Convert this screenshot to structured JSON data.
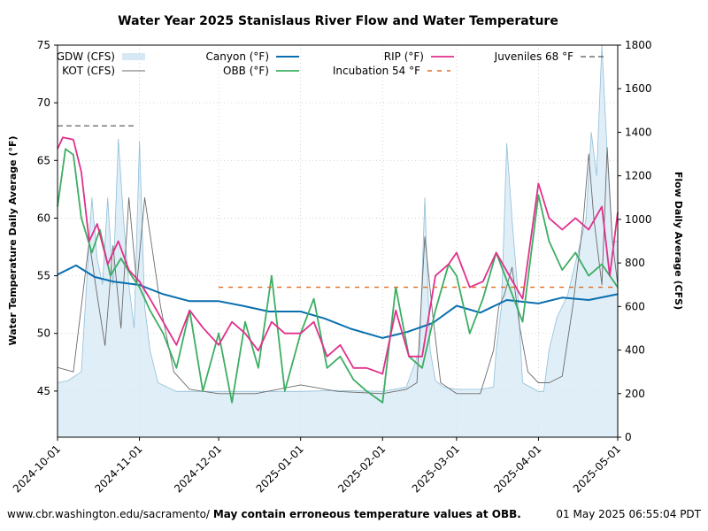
{
  "chart_data": {
    "type": "line",
    "title": "Water Year 2025 Stanislaus River Flow and Water Temperature",
    "ylabel": "Water Temperature Daily Average (°F)",
    "y2label": "Flow Daily Average (CFS)",
    "ylim": [
      41,
      75
    ],
    "y2lim": [
      0,
      1800
    ],
    "xlim": [
      "2024-10-01",
      "2025-05-01"
    ],
    "x_ticks": [
      "2024-10-01",
      "2024-11-01",
      "2024-12-01",
      "2025-01-01",
      "2025-02-01",
      "2025-03-01",
      "2025-04-01",
      "2025-05-01"
    ],
    "y_ticks": [
      "45",
      "50",
      "55",
      "60",
      "65",
      "70",
      "75"
    ],
    "y2_ticks": [
      "0",
      "200",
      "400",
      "600",
      "800",
      "1000",
      "1200",
      "1400",
      "1600",
      "1800"
    ],
    "grid": true,
    "legend_placement": "top",
    "colors": {
      "gdw": "#d6e8f4",
      "gdw_edge": "#8fbfd8",
      "kot": "#6b6b6b",
      "canyon": "#0a6fb0",
      "obb": "#3cae63",
      "rip": "#e0308b",
      "incubation": "#e06b1e",
      "juveniles": "#707070"
    },
    "series": [
      {
        "name": "GDW (CFS)",
        "axis": "right",
        "style": "area",
        "x": [
          "2024-10-01",
          "2024-10-05",
          "2024-10-10",
          "2024-10-12",
          "2024-10-14",
          "2024-10-16",
          "2024-10-18",
          "2024-10-20",
          "2024-10-22",
          "2024-10-24",
          "2024-10-26",
          "2024-10-28",
          "2024-10-30",
          "2024-11-01",
          "2024-11-03",
          "2024-11-05",
          "2024-11-08",
          "2024-11-15",
          "2024-12-01",
          "2024-12-15",
          "2025-01-01",
          "2025-01-15",
          "2025-02-01",
          "2025-02-10",
          "2025-02-15",
          "2025-02-17",
          "2025-02-19",
          "2025-02-21",
          "2025-02-24",
          "2025-03-01",
          "2025-03-10",
          "2025-03-15",
          "2025-03-16",
          "2025-03-18",
          "2025-03-20",
          "2025-03-22",
          "2025-03-24",
          "2025-03-26",
          "2025-04-01",
          "2025-04-03",
          "2025-04-05",
          "2025-04-08",
          "2025-04-12",
          "2025-04-15",
          "2025-04-17",
          "2025-04-19",
          "2025-04-21",
          "2025-04-23",
          "2025-04-25",
          "2025-04-27",
          "2025-04-29",
          "2025-05-01"
        ],
        "values": [
          250,
          260,
          300,
          700,
          1100,
          820,
          700,
          1100,
          700,
          1370,
          1000,
          700,
          500,
          1360,
          600,
          400,
          250,
          210,
          210,
          210,
          210,
          215,
          210,
          230,
          400,
          1100,
          400,
          260,
          230,
          220,
          220,
          230,
          400,
          600,
          1350,
          1000,
          700,
          250,
          210,
          210,
          400,
          550,
          650,
          800,
          900,
          1000,
          1400,
          1200,
          1800,
          1300,
          900,
          900
        ]
      },
      {
        "name": "KOT (CFS)",
        "axis": "right",
        "style": "line",
        "x": [
          "2024-10-01",
          "2024-10-04",
          "2024-10-07",
          "2024-10-10",
          "2024-10-13",
          "2024-10-16",
          "2024-10-19",
          "2024-10-22",
          "2024-10-25",
          "2024-10-28",
          "2024-10-31",
          "2024-11-03",
          "2024-11-06",
          "2024-11-09",
          "2024-11-14",
          "2024-11-20",
          "2024-12-01",
          "2024-12-15",
          "2025-01-01",
          "2025-01-15",
          "2025-02-01",
          "2025-02-10",
          "2025-02-14",
          "2025-02-17",
          "2025-02-20",
          "2025-02-23",
          "2025-03-01",
          "2025-03-10",
          "2025-03-15",
          "2025-03-17",
          "2025-03-19",
          "2025-03-22",
          "2025-03-25",
          "2025-03-28",
          "2025-04-01",
          "2025-04-05",
          "2025-04-10",
          "2025-04-14",
          "2025-04-16",
          "2025-04-18",
          "2025-04-20",
          "2025-04-22",
          "2025-04-25",
          "2025-04-27",
          "2025-04-29",
          "2025-05-01"
        ],
        "values": [
          320,
          310,
          300,
          600,
          900,
          650,
          420,
          880,
          500,
          1100,
          700,
          1100,
          850,
          600,
          300,
          220,
          200,
          200,
          240,
          210,
          200,
          220,
          250,
          920,
          560,
          250,
          200,
          200,
          400,
          600,
          650,
          780,
          500,
          300,
          250,
          250,
          280,
          600,
          800,
          1000,
          1300,
          1000,
          700,
          1330,
          900,
          700
        ]
      },
      {
        "name": "Canyon (°F)",
        "axis": "left",
        "style": "line",
        "x": [
          "2024-10-01",
          "2024-10-08",
          "2024-10-15",
          "2024-10-22",
          "2024-11-01",
          "2024-11-10",
          "2024-11-20",
          "2024-12-01",
          "2024-12-10",
          "2024-12-20",
          "2025-01-01",
          "2025-01-10",
          "2025-01-20",
          "2025-02-01",
          "2025-02-10",
          "2025-02-20",
          "2025-03-01",
          "2025-03-10",
          "2025-03-20",
          "2025-04-01",
          "2025-04-10",
          "2025-04-20",
          "2025-05-01"
        ],
        "values": [
          55.1,
          55.9,
          54.9,
          54.5,
          54.2,
          53.4,
          52.8,
          52.8,
          52.4,
          51.9,
          51.9,
          51.3,
          50.4,
          49.6,
          50.1,
          50.9,
          52.4,
          51.8,
          52.9,
          52.6,
          53.1,
          52.9,
          53.4
        ]
      },
      {
        "name": "OBB (°F)",
        "axis": "left",
        "style": "line",
        "x": [
          "2024-10-01",
          "2024-10-04",
          "2024-10-07",
          "2024-10-10",
          "2024-10-14",
          "2024-10-17",
          "2024-10-21",
          "2024-10-25",
          "2024-10-29",
          "2024-11-01",
          "2024-11-05",
          "2024-11-10",
          "2024-11-15",
          "2024-11-20",
          "2024-11-25",
          "2024-12-01",
          "2024-12-06",
          "2024-12-11",
          "2024-12-16",
          "2024-12-21",
          "2024-12-26",
          "2025-01-01",
          "2025-01-06",
          "2025-01-11",
          "2025-01-16",
          "2025-01-21",
          "2025-01-26",
          "2025-02-01",
          "2025-02-06",
          "2025-02-11",
          "2025-02-16",
          "2025-02-21",
          "2025-02-26",
          "2025-03-01",
          "2025-03-06",
          "2025-03-11",
          "2025-03-16",
          "2025-03-21",
          "2025-03-26",
          "2025-04-01",
          "2025-04-05",
          "2025-04-10",
          "2025-04-15",
          "2025-04-20",
          "2025-04-25",
          "2025-05-01"
        ],
        "values": [
          61,
          66,
          65.5,
          60,
          57,
          59,
          55,
          56.5,
          55,
          54,
          52,
          50,
          47,
          52,
          45,
          50,
          44,
          51,
          47,
          55,
          45,
          50,
          53,
          47,
          48,
          46,
          45,
          44,
          54,
          48,
          47,
          52,
          56,
          55,
          50,
          53,
          57,
          54,
          51,
          62,
          58,
          55.5,
          57,
          55,
          56,
          54
        ]
      },
      {
        "name": "RIP (°F)",
        "axis": "left",
        "style": "line",
        "x": [
          "2024-10-01",
          "2024-10-03",
          "2024-10-07",
          "2024-10-10",
          "2024-10-13",
          "2024-10-16",
          "2024-10-20",
          "2024-10-24",
          "2024-10-28",
          "2024-11-01",
          "2024-11-05",
          "2024-11-10",
          "2024-11-15",
          "2024-11-20",
          "2024-11-25",
          "2024-12-01",
          "2024-12-06",
          "2024-12-11",
          "2024-12-16",
          "2024-12-21",
          "2024-12-26",
          "2025-01-01",
          "2025-01-06",
          "2025-01-11",
          "2025-01-16",
          "2025-01-21",
          "2025-01-26",
          "2025-02-01",
          "2025-02-06",
          "2025-02-11",
          "2025-02-16",
          "2025-02-21",
          "2025-02-26",
          "2025-03-01",
          "2025-03-06",
          "2025-03-11",
          "2025-03-16",
          "2025-03-21",
          "2025-03-26",
          "2025-04-01",
          "2025-04-05",
          "2025-04-10",
          "2025-04-15",
          "2025-04-20",
          "2025-04-25",
          "2025-04-28",
          "2025-05-01"
        ],
        "values": [
          66,
          67,
          66.8,
          64,
          58,
          59.5,
          56,
          58,
          55.5,
          54.5,
          53,
          51,
          49,
          52,
          50.5,
          49,
          51,
          50,
          48.5,
          51,
          50,
          50,
          51,
          48,
          49,
          47,
          47,
          46.5,
          52,
          48,
          48,
          55,
          56,
          57,
          54,
          54.5,
          57,
          55,
          53,
          63,
          60,
          59,
          60,
          59,
          61,
          55,
          60.5
        ]
      },
      {
        "name": "Incubation 54 °F",
        "axis": "left",
        "style": "dashed",
        "x": [
          "2024-12-01",
          "2025-05-01"
        ],
        "values": [
          54,
          54
        ]
      },
      {
        "name": "Juveniles 68 °F",
        "axis": "left",
        "style": "dashed",
        "x": [
          "2024-10-01",
          "2024-10-31"
        ],
        "values": [
          68,
          68
        ]
      }
    ]
  },
  "footer": {
    "url": "www.cbr.washington.edu/sacramento/",
    "note": "May contain erroneous temperature values at OBB.",
    "timestamp": "01 May 2025 06:55:04 PDT"
  }
}
